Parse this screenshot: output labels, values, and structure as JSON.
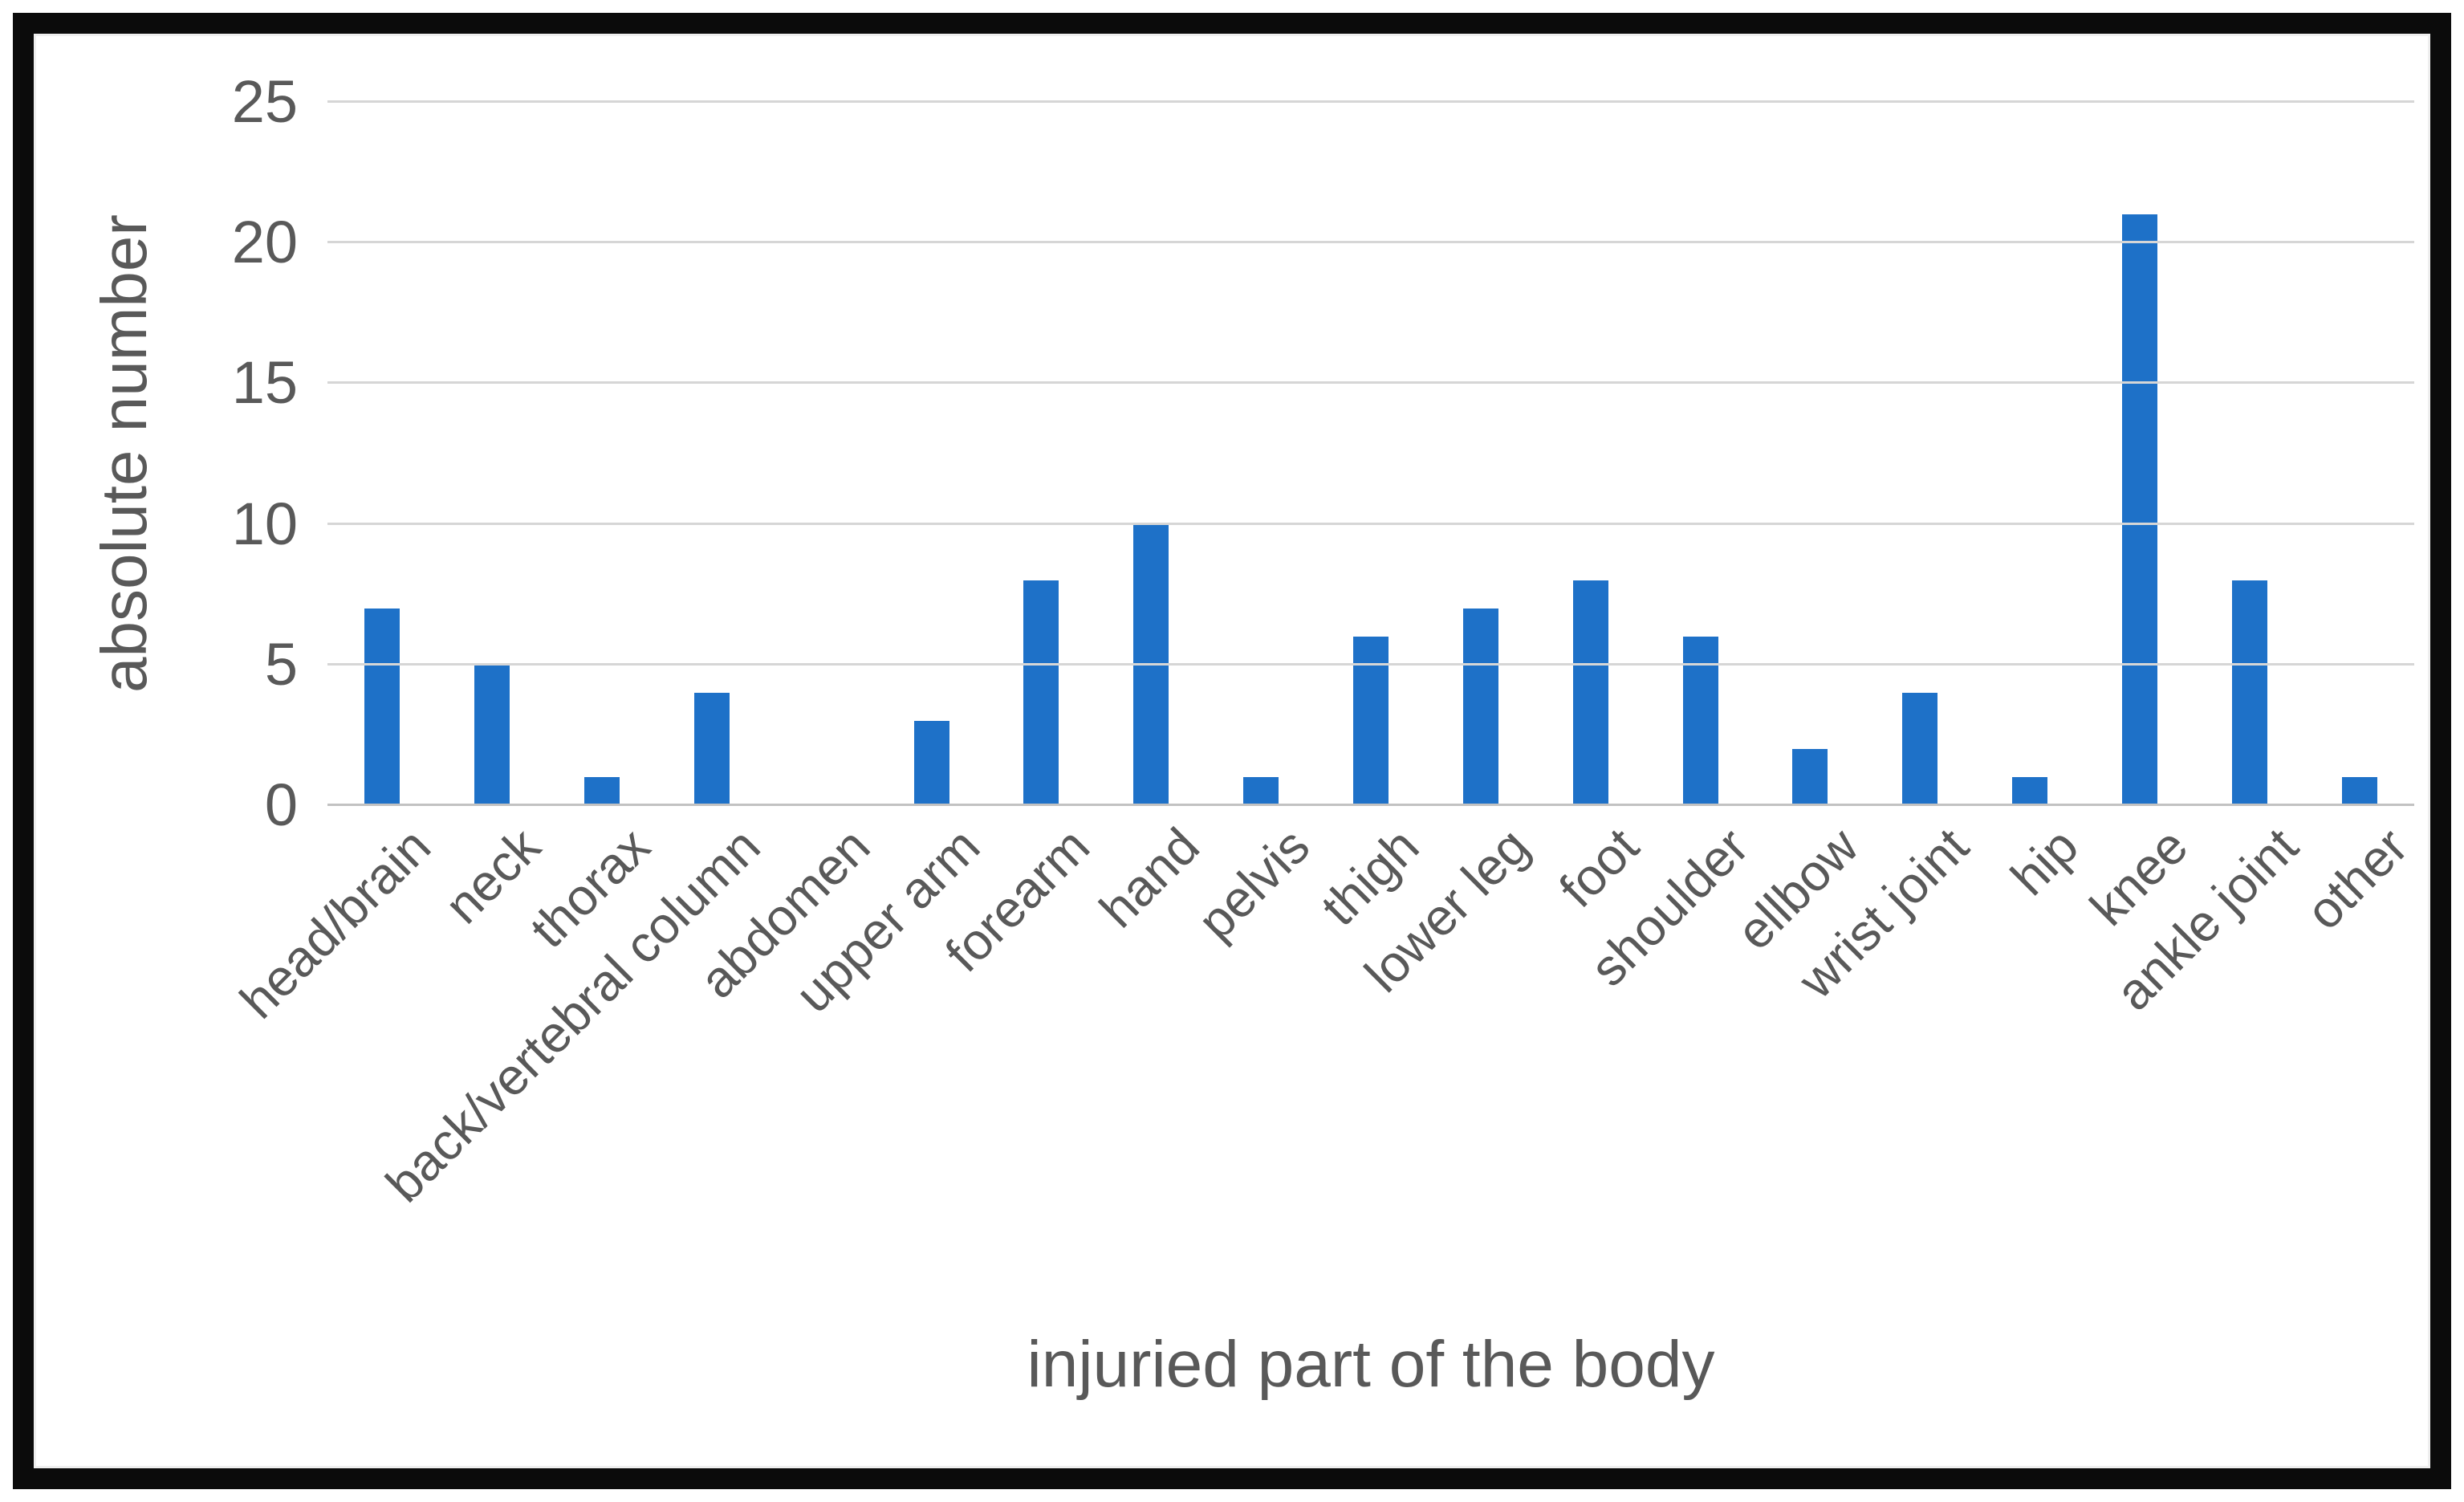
{
  "figure": {
    "frame_color": "#0b0b0b",
    "background": "#ffffff"
  },
  "chart_data": {
    "type": "bar",
    "title": "",
    "categories": [
      "head/brain",
      "neck",
      "thorax",
      "back/vertebral column",
      "abdomen",
      "upper arm",
      "forearm",
      "hand",
      "pelvis",
      "thigh",
      "lower leg",
      "foot",
      "shoulder",
      "ellbow",
      "wrist joint",
      "hip",
      "knee",
      "ankle joint",
      "other"
    ],
    "values": [
      7,
      5,
      1,
      4,
      0,
      3,
      8,
      10,
      1,
      6,
      7,
      8,
      6,
      2,
      4,
      1,
      21,
      8,
      1
    ],
    "xlabel": "injuried part of the body",
    "ylabel": "absolute number",
    "ylim": [
      0,
      25
    ],
    "y_ticks": [
      0,
      5,
      10,
      15,
      20,
      25
    ],
    "grid": "horizontal",
    "legend": "none",
    "bar_color": "#1e71c8",
    "gridline_color": "#d6d6d6",
    "axis_text_color": "#595959"
  }
}
